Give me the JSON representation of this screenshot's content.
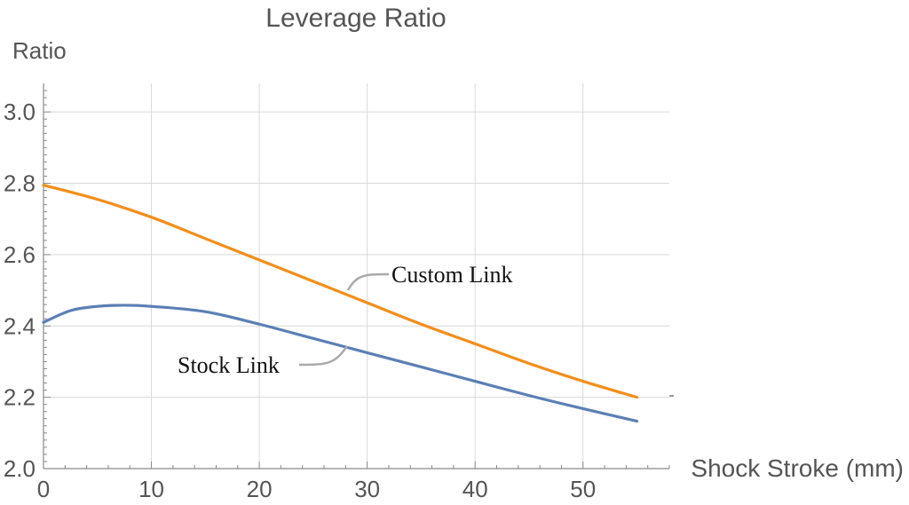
{
  "chart_data": {
    "type": "line",
    "title": "Leverage Ratio",
    "xlabel": "Shock Stroke (mm)",
    "ylabel": "Ratio",
    "xlim": [
      0,
      58
    ],
    "ylim": [
      2.0,
      3.08
    ],
    "x_ticks": [
      "0",
      "10",
      "20",
      "30",
      "40",
      "50"
    ],
    "y_ticks": [
      "2.0",
      "2.2",
      "2.4",
      "2.6",
      "2.8",
      "3.0"
    ],
    "grid": true,
    "series": [
      {
        "name": "Custom Link",
        "color": "#f28e1c",
        "x": [
          0,
          5,
          10,
          15,
          20,
          25,
          30,
          35,
          40,
          45,
          50,
          55
        ],
        "y": [
          2.795,
          2.755,
          2.705,
          2.645,
          2.585,
          2.525,
          2.465,
          2.405,
          2.35,
          2.295,
          2.245,
          2.2
        ]
      },
      {
        "name": "Stock Link",
        "color": "#5b7fb5",
        "x": [
          0,
          2.5,
          5,
          7.5,
          10,
          15,
          20,
          25,
          30,
          35,
          40,
          45,
          50,
          55
        ],
        "y": [
          2.41,
          2.443,
          2.455,
          2.458,
          2.455,
          2.44,
          2.405,
          2.365,
          2.325,
          2.285,
          2.245,
          2.205,
          2.168,
          2.133
        ]
      }
    ]
  }
}
